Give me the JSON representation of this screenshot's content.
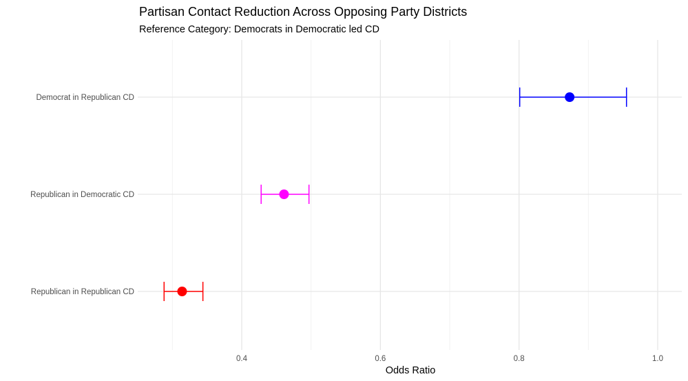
{
  "chart_data": {
    "type": "scatter",
    "title": "Partisan Contact Reduction Across Opposing Party Districts",
    "subtitle": "Reference Category: Democrats in Democratic led CD",
    "xlabel": "Odds Ratio",
    "ylabel": "",
    "xlim": [
      0.25,
      1.03
    ],
    "x_ticks": [
      {
        "value": 0.4,
        "label": "0.4"
      },
      {
        "value": 0.6,
        "label": "0.6"
      },
      {
        "value": 0.8,
        "label": "0.8"
      },
      {
        "value": 1.0,
        "label": "1.0"
      }
    ],
    "grid": true,
    "legend": "none",
    "categories": [
      "Democrat in Republican CD",
      "Republican in Democratic CD",
      "Republican in Republican CD"
    ],
    "points": [
      {
        "category": "Democrat in Republican CD",
        "estimate": 0.873,
        "lower": 0.801,
        "upper": 0.955,
        "color": "#0000ff"
      },
      {
        "category": "Republican in Democratic CD",
        "estimate": 0.461,
        "lower": 0.428,
        "upper": 0.497,
        "color": "#ff00ff"
      },
      {
        "category": "Republican in Republican CD",
        "estimate": 0.314,
        "lower": 0.288,
        "upper": 0.344,
        "color": "#ff0000"
      }
    ]
  }
}
